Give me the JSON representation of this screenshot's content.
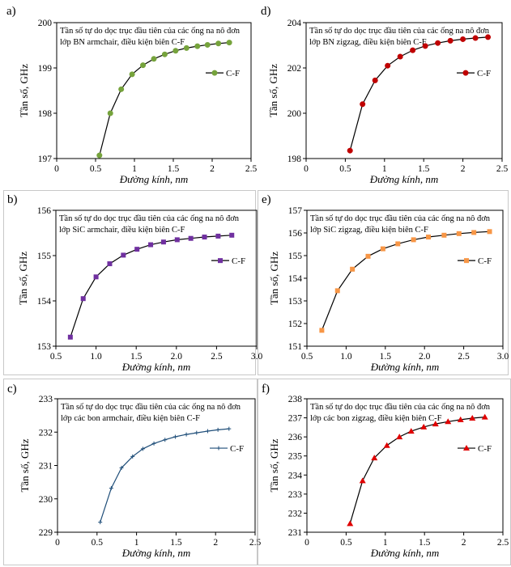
{
  "panels": [
    {
      "id": "a",
      "label": "a)",
      "border": false,
      "chart_data": {
        "type": "line",
        "title": "",
        "annotation": [
          "Tần số tự do dọc trục đầu tiên của các ống na nô đơn",
          "lớp BN armchair,  điều kiện biên C-F"
        ],
        "xlabel": "Đường kính, nm",
        "ylabel": "Tần số, GHz",
        "xlim": [
          0,
          2.5
        ],
        "ylim": [
          197,
          200
        ],
        "xticks": [
          "0",
          "0.5",
          "1",
          "1.5",
          "2",
          "2.5"
        ],
        "yticks": [
          "197",
          "198",
          "199",
          "200"
        ],
        "marker": "circle",
        "color": "#76a33c",
        "line_color": "#000000",
        "legend_position": "right",
        "series": [
          {
            "name": "C-F",
            "x": [
              0.55,
              0.69,
              0.83,
              0.97,
              1.11,
              1.25,
              1.39,
              1.53,
              1.67,
              1.81,
              1.94,
              2.08,
              2.22
            ],
            "values": [
              197.07,
              198.0,
              198.53,
              198.86,
              199.06,
              199.2,
              199.3,
              199.38,
              199.44,
              199.48,
              199.51,
              199.54,
              199.56
            ]
          }
        ]
      }
    },
    {
      "id": "d",
      "label": "d)",
      "border": false,
      "chart_data": {
        "type": "line",
        "title": "",
        "annotation": [
          "Tần số tự do dọc trục đầu tiên của các ống na nô đơn",
          "lớp BN zigzag, điều kiện biên C-F"
        ],
        "xlabel": "Đường kính, nm",
        "ylabel": "Tần số, GHz",
        "xlim": [
          0,
          2.5
        ],
        "ylim": [
          198,
          204
        ],
        "xticks": [
          "0",
          "0.5",
          "1",
          "1.5",
          "2",
          "2.5"
        ],
        "yticks": [
          "198",
          "200",
          "202",
          "204"
        ],
        "marker": "circle",
        "color": "#c00000",
        "line_color": "#000000",
        "legend_position": "right",
        "series": [
          {
            "name": "C-F",
            "x": [
              0.56,
              0.72,
              0.88,
              1.04,
              1.2,
              1.36,
              1.52,
              1.68,
              1.84,
              2.0,
              2.16,
              2.32
            ],
            "values": [
              198.35,
              200.4,
              201.45,
              202.1,
              202.5,
              202.78,
              202.97,
              203.1,
              203.2,
              203.27,
              203.32,
              203.36
            ]
          }
        ]
      }
    },
    {
      "id": "b",
      "label": "b)",
      "border": true,
      "chart_data": {
        "type": "line",
        "title": "",
        "annotation": [
          "Tần số tự do dọc trục đầu tiên của các ống na nô đơn",
          "lớp SiC armchair,  điều kiện biên C-F"
        ],
        "xlabel": "Đường kính, nm",
        "ylabel": "Tần số, GHz",
        "xlim": [
          0.5,
          3.0
        ],
        "ylim": [
          153,
          156
        ],
        "xticks": [
          "0.5",
          "1.0",
          "1.5",
          "2.0",
          "2.5",
          "3.0"
        ],
        "yticks": [
          "153",
          "154",
          "155",
          "156"
        ],
        "marker": "square",
        "color": "#7030a0",
        "line_color": "#000000",
        "legend_position": "right",
        "series": [
          {
            "name": "C-F",
            "x": [
              0.68,
              0.84,
              1.0,
              1.17,
              1.34,
              1.51,
              1.68,
              1.84,
              2.01,
              2.18,
              2.35,
              2.52,
              2.69
            ],
            "values": [
              153.2,
              154.05,
              154.53,
              154.82,
              155.01,
              155.14,
              155.24,
              155.3,
              155.35,
              155.38,
              155.41,
              155.43,
              155.45
            ]
          }
        ]
      }
    },
    {
      "id": "e",
      "label": "e)",
      "border": true,
      "chart_data": {
        "type": "line",
        "title": "",
        "annotation": [
          "Tần số tự do dọc trục đầu tiên của các ống na nô đơn",
          "lớp SiC zigzag, điều kiện biên C-F"
        ],
        "xlabel": "Đường kính, nm",
        "ylabel": "Tần số, GHz",
        "xlim": [
          0.5,
          3.0
        ],
        "ylim": [
          151,
          157
        ],
        "xticks": [
          "0.5",
          "1.0",
          "1.5",
          "2.0",
          "2.5",
          "3.0"
        ],
        "yticks": [
          "151",
          "152",
          "153",
          "154",
          "155",
          "156",
          "157"
        ],
        "marker": "square",
        "color": "#f79646",
        "line_color": "#000000",
        "legend_position": "right",
        "series": [
          {
            "name": "C-F",
            "x": [
              0.69,
              0.89,
              1.08,
              1.28,
              1.47,
              1.66,
              1.86,
              2.05,
              2.25,
              2.44,
              2.63,
              2.83
            ],
            "values": [
              151.7,
              153.45,
              154.4,
              154.97,
              155.3,
              155.52,
              155.7,
              155.82,
              155.9,
              155.97,
              156.02,
              156.06
            ]
          }
        ]
      }
    },
    {
      "id": "c",
      "label": "c)",
      "border": true,
      "chart_data": {
        "type": "line",
        "title": "",
        "annotation": [
          "Tần số tự do dọc trục đầu tiên của các ống na nô đơn",
          "lớp các bon armchair,  điều kiện biên C-F"
        ],
        "xlabel": "Đường kính, nm",
        "ylabel": "Tần số, GHz",
        "xlim": [
          0,
          2.5
        ],
        "ylim": [
          229,
          233
        ],
        "xticks": [
          "0",
          "0.5",
          "1",
          "1.5",
          "2",
          "2.5"
        ],
        "yticks": [
          "229",
          "230",
          "231",
          "232",
          "233"
        ],
        "marker": "cross",
        "color": "#1f4e79",
        "line_color": "#1f4e79",
        "legend_position": "right",
        "series": [
          {
            "name": "C-F",
            "x": [
              0.54,
              0.68,
              0.81,
              0.95,
              1.08,
              1.22,
              1.36,
              1.49,
              1.63,
              1.76,
              1.9,
              2.03,
              2.17
            ],
            "values": [
              229.3,
              230.32,
              230.93,
              231.27,
              231.5,
              231.66,
              231.77,
              231.86,
              231.93,
              231.98,
              232.03,
              232.07,
              232.1
            ]
          }
        ]
      }
    },
    {
      "id": "f",
      "label": "f)",
      "border": true,
      "chart_data": {
        "type": "line",
        "title": "",
        "annotation": [
          "Tần số tự do dọc trục đầu tiên của các ống na nô đơn",
          "lớp các bon zigzag, điều kiện biên C-F"
        ],
        "xlabel": "Đường kính, nm",
        "ylabel": "Tần số, GHz",
        "xlim": [
          0,
          2.5
        ],
        "ylim": [
          231,
          238
        ],
        "xticks": [
          "0",
          "0.5",
          "1",
          "1.5",
          "2",
          "2.5"
        ],
        "yticks": [
          "231",
          "232",
          "233",
          "234",
          "235",
          "236",
          "237",
          "238"
        ],
        "marker": "triangle",
        "color": "#e00000",
        "line_color": "#000000",
        "legend_position": "right",
        "series": [
          {
            "name": "C-F",
            "x": [
              0.55,
              0.71,
              0.86,
              1.02,
              1.18,
              1.33,
              1.49,
              1.64,
              1.8,
              1.96,
              2.11,
              2.27
            ],
            "values": [
              231.45,
              233.7,
              234.9,
              235.55,
              236.0,
              236.3,
              236.52,
              236.68,
              236.8,
              236.9,
              236.98,
              237.04
            ]
          }
        ]
      }
    }
  ]
}
